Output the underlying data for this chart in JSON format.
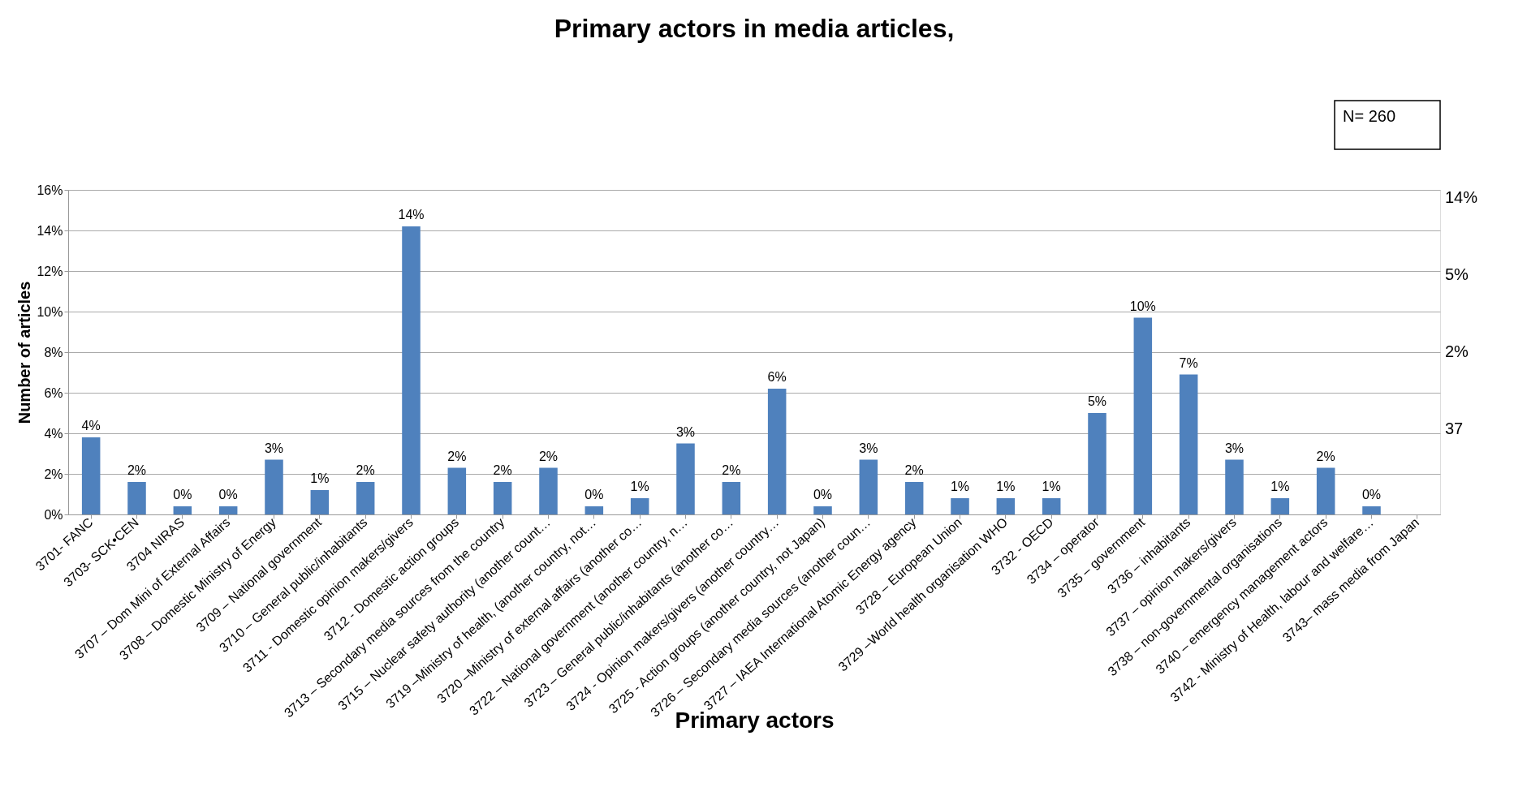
{
  "chart_data": {
    "type": "bar",
    "title": "Primary actors in media articles,",
    "xlabel": "Primary actors",
    "ylabel": "Number of articles",
    "categories": [
      "3701- FANC",
      "3703- SCK•CEN",
      "3704 NIRAS",
      "3707 – Dom Mini of External Affairs",
      "3708 – Domestic Ministry of Energy",
      "3709 – National government",
      "3710 – General public/inhabitants",
      "3711 - Domestic opinion makers/givers",
      "3712 - Domestic action groups",
      "3713 – Secondary media sources from the country",
      "3715 – Nuclear safety authority (another count…",
      "3719 –Ministry of health, (another country, not…",
      "3720 –Ministry of external affairs (another co…",
      "3722 – National government (another country, n…",
      "3723 – General public/inhabitants (another co…",
      "3724 - Opinion makers/givers (another country…",
      "3725 - Action groups (another country, not Japan)",
      "3726 – Secondary media sources (another coun…",
      "3727 – IAEA International Atomic Energy agency",
      "3728 – European Union",
      "3729 –World health organisation WHO",
      "3732 - OECD",
      "3734 – operator",
      "3735 – government",
      "3736 – inhabitants",
      "3737 – opinion makers/givers",
      "3738 – non-governmental organisations",
      "3740 – emergency management actors",
      "3742 - Ministry of Health, labour and welfare…",
      "3743– mass media from Japan"
    ],
    "series": [
      {
        "color": "#4f81bd",
        "values": [
          3.8,
          1.6,
          0.4,
          0.4,
          2.7,
          1.2,
          1.6,
          14.2,
          2.3,
          1.6,
          2.3,
          0.4,
          0.8,
          3.5,
          1.6,
          6.2,
          0.4,
          2.7,
          1.6,
          0.8,
          0.8,
          0.8,
          5.0,
          9.7,
          6.9,
          2.7,
          0.8,
          2.3,
          0.4,
          null
        ],
        "value_labels": [
          "4%",
          "2%",
          "0%",
          "0%",
          "3%",
          "1%",
          "2%",
          "14%",
          "2%",
          "2%",
          "2%",
          "0%",
          "1%",
          "3%",
          "2%",
          "6%",
          "0%",
          "3%",
          "2%",
          "1%",
          "1%",
          "1%",
          "5%",
          "10%",
          "7%",
          "3%",
          "1%",
          "2%",
          "0%",
          null
        ]
      }
    ],
    "ylim": [
      0,
      16
    ],
    "yticks": [
      {
        "value": 0,
        "label": "0%"
      },
      {
        "value": 2,
        "label": "2%"
      },
      {
        "value": 4,
        "label": "4%"
      },
      {
        "value": 6,
        "label": "6%"
      },
      {
        "value": 8,
        "label": "8%"
      },
      {
        "value": 10,
        "label": "10%"
      },
      {
        "value": 12,
        "label": "12%"
      },
      {
        "value": 14,
        "label": "14%"
      },
      {
        "value": 16,
        "label": "16%"
      }
    ],
    "grid": "y",
    "annotations": [
      "N= 260",
      "14%",
      "5%",
      "2%",
      "37"
    ]
  }
}
